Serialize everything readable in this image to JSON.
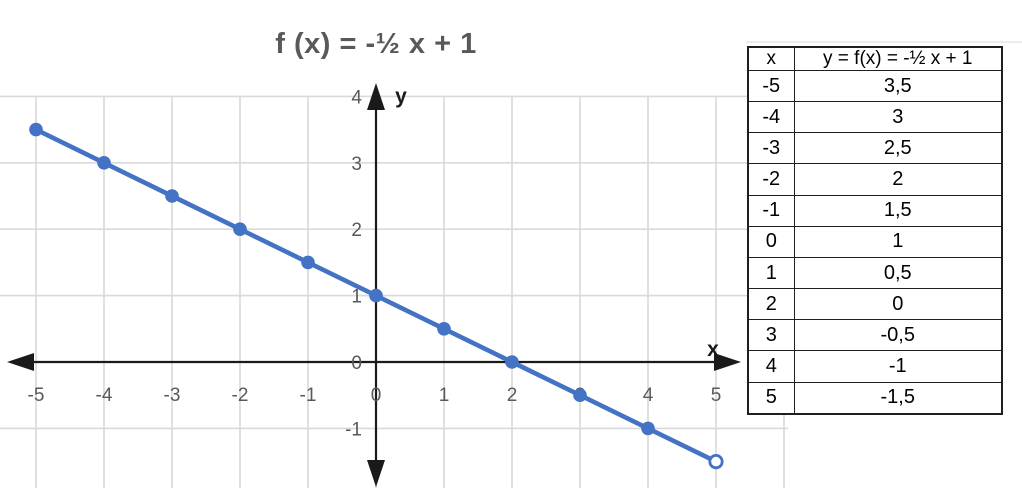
{
  "chart": {
    "title": "f (x) = -½ x + 1"
  },
  "chart_data": {
    "type": "line",
    "title": "f (x) = -½ x + 1",
    "xlabel": "x",
    "ylabel": "y",
    "x": [
      -5,
      -4,
      -3,
      -2,
      -1,
      0,
      1,
      2,
      3,
      4,
      5
    ],
    "y": [
      3.5,
      3,
      2.5,
      2,
      1.5,
      1,
      0.5,
      0,
      -0.5,
      -1,
      -1.5
    ],
    "x_ticks": [
      -5,
      -4,
      -3,
      -2,
      -1,
      0,
      1,
      2,
      3,
      4,
      5
    ],
    "x_tick_labels": [
      "-5",
      "-4",
      "-3",
      "-2",
      "-1",
      "0",
      "1",
      "2",
      "3",
      "4",
      "5"
    ],
    "y_ticks": [
      4,
      3,
      2,
      1,
      0,
      -1
    ],
    "y_tick_labels": [
      "4",
      "3",
      "2",
      "1",
      "0",
      "-1"
    ],
    "grid": true,
    "grid_x": [
      -5,
      -4,
      -3,
      -2,
      -1,
      0,
      1,
      2,
      3,
      4,
      5,
      6
    ],
    "grid_y": [
      4,
      3,
      2,
      1,
      -1
    ],
    "xlim": [
      -5.5,
      6.1
    ],
    "ylim": [
      -1.9,
      4.0
    ],
    "legend": "none",
    "marker": "filled-circle",
    "last_marker": "open-circle",
    "colors": {
      "line": "#4472C4",
      "grid": "#D9D9D9",
      "axis": "#1A1A1A",
      "tick_text": "#595959",
      "title_text": "#595959",
      "axis_label_text": "#1A1A1A"
    }
  },
  "table": {
    "headers": [
      "x",
      "y = f(x) = -½ x + 1"
    ],
    "rows": [
      [
        "-5",
        "3,5"
      ],
      [
        "-4",
        "3"
      ],
      [
        "-3",
        "2,5"
      ],
      [
        "-2",
        "2"
      ],
      [
        "-1",
        "1,5"
      ],
      [
        "0",
        "1"
      ],
      [
        "1",
        "0,5"
      ],
      [
        "2",
        "0"
      ],
      [
        "3",
        "-0,5"
      ],
      [
        "4",
        "-1"
      ],
      [
        "5",
        "-1,5"
      ]
    ]
  }
}
